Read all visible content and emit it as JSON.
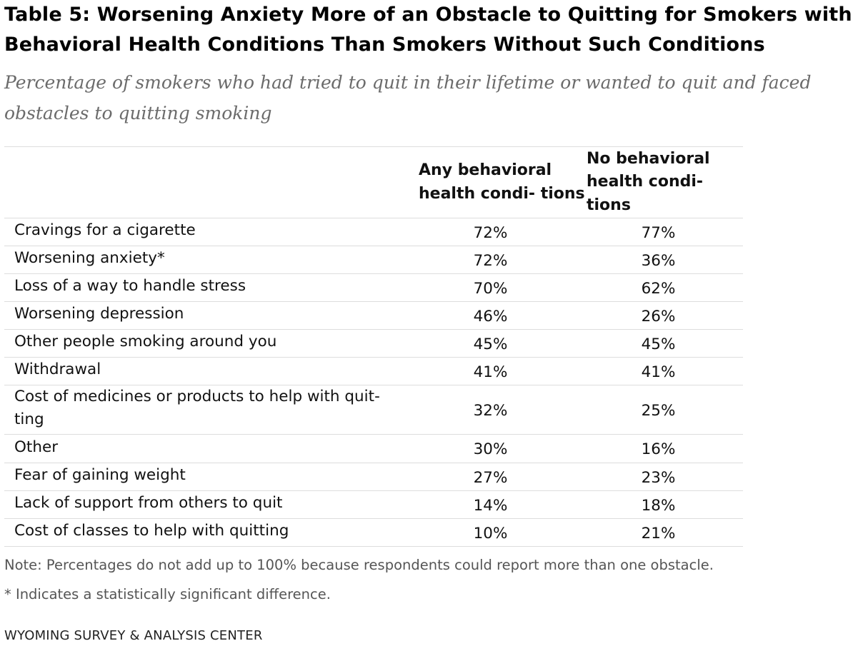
{
  "title": "Table 5: Worsening Anxiety More of an Obstacle to Quitting for Smokers with Behavioral Health Conditions Than Smokers Without Such Conditions",
  "subtitle": "Percentage of smokers who had tried to quit in their lifetime or wanted to quit and faced obstacles to quitting smoking",
  "chart_data": {
    "type": "table",
    "title": "Table 5: Worsening Anxiety More of an Obstacle to Quitting for Smokers with Behavioral Health Conditions Than Smokers Without Such Conditions",
    "subtitle": "Percentage of smokers who had tried to quit in their lifetime or wanted to quit and faced obstacles to quitting smoking",
    "columns": [
      "",
      "Any behavioral health condi- tions",
      "No behavioral health condi- tions"
    ],
    "rows": [
      {
        "label": "Cravings for a cigarette",
        "any": "72%",
        "none": "77%"
      },
      {
        "label": "Worsening anxiety*",
        "any": "72%",
        "none": "36%"
      },
      {
        "label": "Loss of a way to handle stress",
        "any": "70%",
        "none": "62%"
      },
      {
        "label": "Worsening depression",
        "any": "46%",
        "none": "26%"
      },
      {
        "label": "Other people smoking around you",
        "any": "45%",
        "none": "45%"
      },
      {
        "label": "Withdrawal",
        "any": "41%",
        "none": "41%"
      },
      {
        "label": "Cost of medicines or products to help with quit- ting",
        "any": "32%",
        "none": "25%"
      },
      {
        "label": "Other",
        "any": "30%",
        "none": "16%"
      },
      {
        "label": "Fear of gaining weight",
        "any": "27%",
        "none": "23%"
      },
      {
        "label": "Lack of support from others to quit",
        "any": "14%",
        "none": "18%"
      },
      {
        "label": "Cost of classes to help with quitting",
        "any": "10%",
        "none": "21%"
      }
    ]
  },
  "notes": {
    "note1": "Note: Percentages do not add up to 100% because respondents could report more than one obstacle.",
    "note2": "* Indicates a statistically significant difference."
  },
  "source": "WYOMING SURVEY & ANALYSIS CENTER",
  "colors": {
    "text": "#111111",
    "subtitle": "#6b6b6b",
    "note": "#555555",
    "rule": "#dddddd"
  }
}
